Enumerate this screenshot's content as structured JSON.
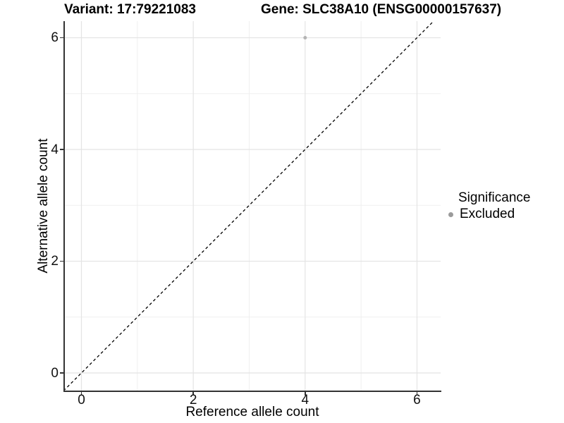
{
  "chart_data": {
    "type": "scatter",
    "titles": {
      "left": "Variant: 17:79221083",
      "right": "Gene: SLC38A10 (ENSG00000157637)"
    },
    "xlabel": "Reference allele count",
    "ylabel": "Alternative allele count",
    "xlim": [
      -0.32,
      6.42
    ],
    "ylim": [
      -0.32,
      6.3
    ],
    "x_ticks": [
      0,
      2,
      4,
      6
    ],
    "y_ticks": [
      0,
      2,
      4,
      6
    ],
    "x_minor_ticks": [
      1,
      3,
      5
    ],
    "y_minor_ticks": [
      1,
      3,
      5
    ],
    "grid": "major+minor",
    "identity_line": {
      "style": "dashed",
      "color": "#000000",
      "from": [
        -0.32,
        -0.32
      ],
      "to": [
        6.3,
        6.3
      ]
    },
    "series": [
      {
        "name": "Excluded",
        "color": "#b4b4b4",
        "points": [
          {
            "x": 4,
            "y": 6
          }
        ]
      }
    ],
    "legend": {
      "title": "Significance",
      "position": "right",
      "items": [
        {
          "label": "Excluded",
          "color": "#9b9b9b",
          "marker": "circle"
        }
      ]
    },
    "colors": {
      "background": "#ffffff",
      "grid_major": "#e4e4e4",
      "grid_minor": "#efefef",
      "axis": "#333333",
      "text": "#000000"
    }
  }
}
